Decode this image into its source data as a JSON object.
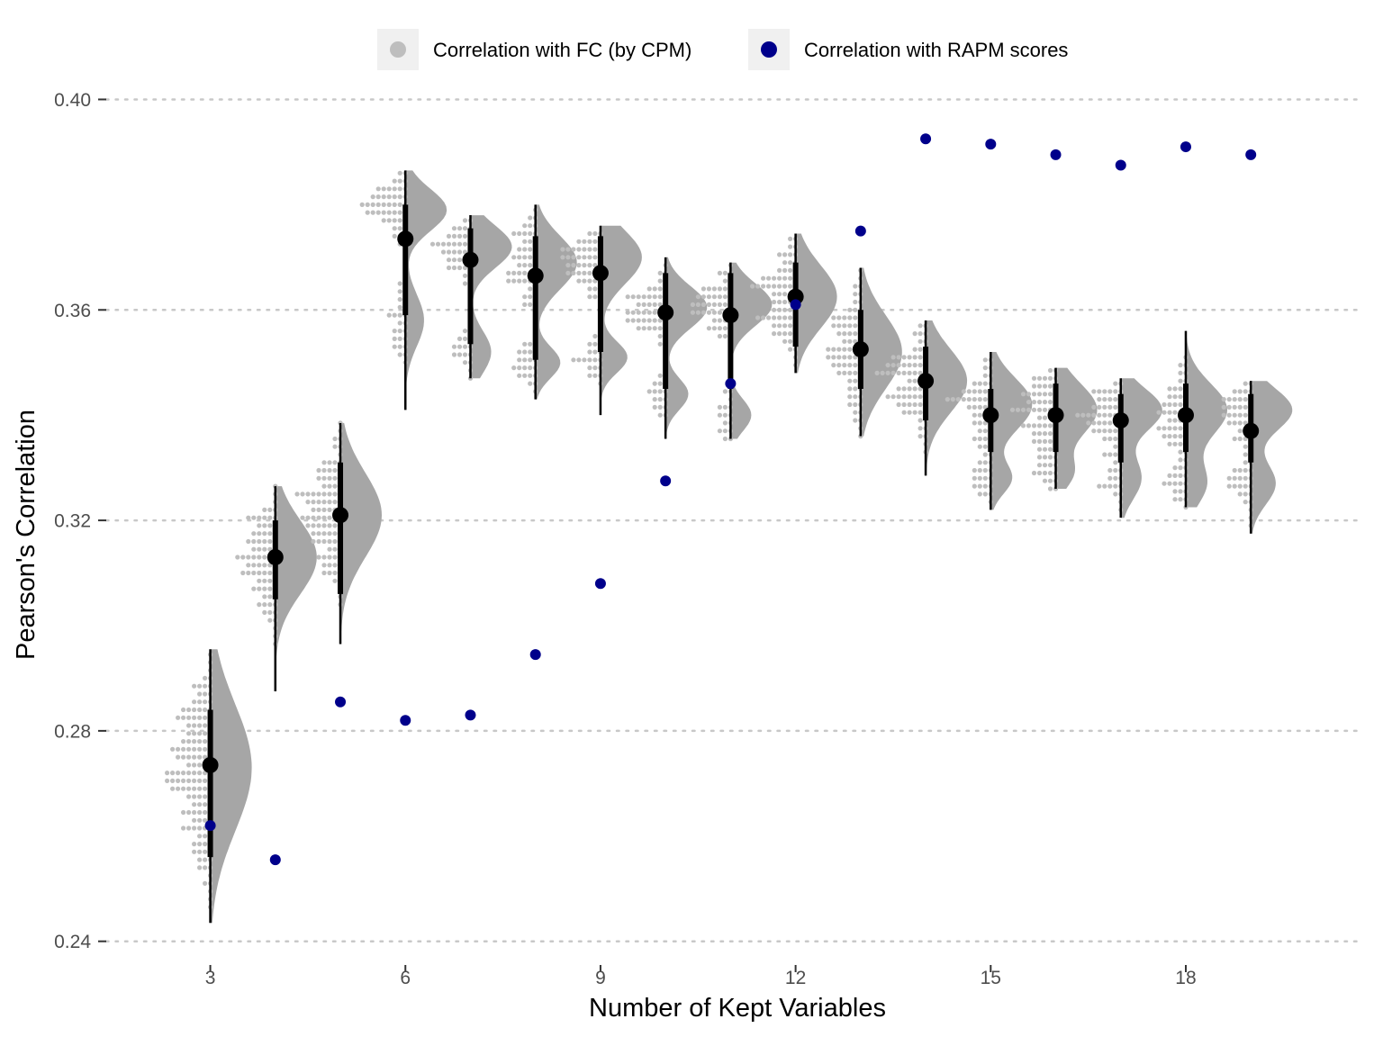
{
  "chart_data": {
    "type": "scatter",
    "subtype": "raincloud",
    "xlabel": "Number of Kept Variables",
    "ylabel": "Pearson's Correlation",
    "xlim": [
      1.4,
      20.7
    ],
    "ylim": [
      0.2355,
      0.4035
    ],
    "x_ticks": [
      3,
      6,
      9,
      12,
      15,
      18
    ],
    "y_ticks": [
      0.24,
      0.28,
      0.32,
      0.36,
      0.4
    ],
    "y_tick_labels": [
      "0.24",
      "0.28",
      "0.32",
      "0.36",
      "0.40"
    ],
    "grid": "horizontal-dotted",
    "legend_position": "top",
    "colors": {
      "cpm_dots": "#bebebe",
      "cpm_density": "#a6a6a6",
      "rapm": "#00008b",
      "summary": "#000000",
      "grid": "#c8c8c8",
      "legend_key_bg": "#f0f0f0"
    },
    "series": [
      {
        "name": "Correlation with FC (by CPM)",
        "kind": "distribution",
        "x": [
          3,
          4,
          5,
          6,
          7,
          8,
          9,
          10,
          11,
          12,
          13,
          14,
          15,
          16,
          17,
          18,
          19
        ],
        "mean": [
          0.2735,
          0.313,
          0.321,
          0.3735,
          0.3695,
          0.3665,
          0.367,
          0.3595,
          0.359,
          0.3625,
          0.3525,
          0.3465,
          0.34,
          0.34,
          0.339,
          0.34,
          0.337
        ],
        "min": [
          0.2435,
          0.2875,
          0.2965,
          0.341,
          0.347,
          0.343,
          0.34,
          0.3355,
          0.3355,
          0.348,
          0.336,
          0.3285,
          0.322,
          0.326,
          0.3205,
          0.3225,
          0.3175
        ],
        "max": [
          0.2955,
          0.3265,
          0.3385,
          0.3865,
          0.378,
          0.38,
          0.376,
          0.37,
          0.369,
          0.3745,
          0.368,
          0.358,
          0.352,
          0.349,
          0.347,
          0.356,
          0.3465
        ],
        "q1": [
          0.256,
          0.305,
          0.306,
          0.359,
          0.3535,
          0.3505,
          0.352,
          0.345,
          0.345,
          0.353,
          0.345,
          0.339,
          0.333,
          0.333,
          0.331,
          0.333,
          0.331
        ],
        "q3": [
          0.284,
          0.32,
          0.331,
          0.38,
          0.3755,
          0.374,
          0.374,
          0.367,
          0.367,
          0.369,
          0.36,
          0.353,
          0.345,
          0.346,
          0.344,
          0.346,
          0.344
        ],
        "modes": [
          [
            [
              0.273,
              0.012,
              1.0
            ]
          ],
          [
            [
              0.313,
              0.007,
              1.0
            ]
          ],
          [
            [
              0.321,
              0.008,
              1.0
            ]
          ],
          [
            [
              0.379,
              0.004,
              1.0
            ],
            [
              0.358,
              0.005,
              0.45
            ]
          ],
          [
            [
              0.372,
              0.004,
              1.0
            ],
            [
              0.352,
              0.004,
              0.5
            ]
          ],
          [
            [
              0.369,
              0.005,
              1.0
            ],
            [
              0.35,
              0.003,
              0.6
            ]
          ],
          [
            [
              0.37,
              0.005,
              1.0
            ],
            [
              0.351,
              0.003,
              0.65
            ]
          ],
          [
            [
              0.3605,
              0.004,
              1.0
            ],
            [
              0.344,
              0.003,
              0.55
            ]
          ],
          [
            [
              0.361,
              0.004,
              1.0
            ],
            [
              0.34,
              0.003,
              0.5
            ]
          ],
          [
            [
              0.3625,
              0.006,
              1.0
            ]
          ],
          [
            [
              0.352,
              0.007,
              1.0
            ]
          ],
          [
            [
              0.3465,
              0.006,
              1.0
            ]
          ],
          [
            [
              0.342,
              0.005,
              1.0
            ],
            [
              0.328,
              0.003,
              0.5
            ]
          ],
          [
            [
              0.341,
              0.005,
              1.0
            ],
            [
              0.329,
              0.003,
              0.4
            ]
          ],
          [
            [
              0.341,
              0.004,
              1.0
            ],
            [
              0.328,
              0.004,
              0.5
            ]
          ],
          [
            [
              0.341,
              0.005,
              1.0
            ],
            [
              0.327,
              0.004,
              0.5
            ]
          ],
          [
            [
              0.341,
              0.004,
              1.0
            ],
            [
              0.327,
              0.004,
              0.6
            ]
          ]
        ]
      },
      {
        "name": "Correlation with RAPM scores",
        "kind": "points",
        "x": [
          3,
          4,
          5,
          6,
          7,
          8,
          9,
          10,
          11,
          12,
          13,
          14,
          15,
          16,
          17,
          18,
          19
        ],
        "y": [
          0.262,
          0.2555,
          0.2855,
          0.282,
          0.283,
          0.2945,
          0.308,
          0.3275,
          0.346,
          0.361,
          0.375,
          0.3925,
          0.3915,
          0.3895,
          0.3875,
          0.391,
          0.3895
        ]
      }
    ]
  }
}
